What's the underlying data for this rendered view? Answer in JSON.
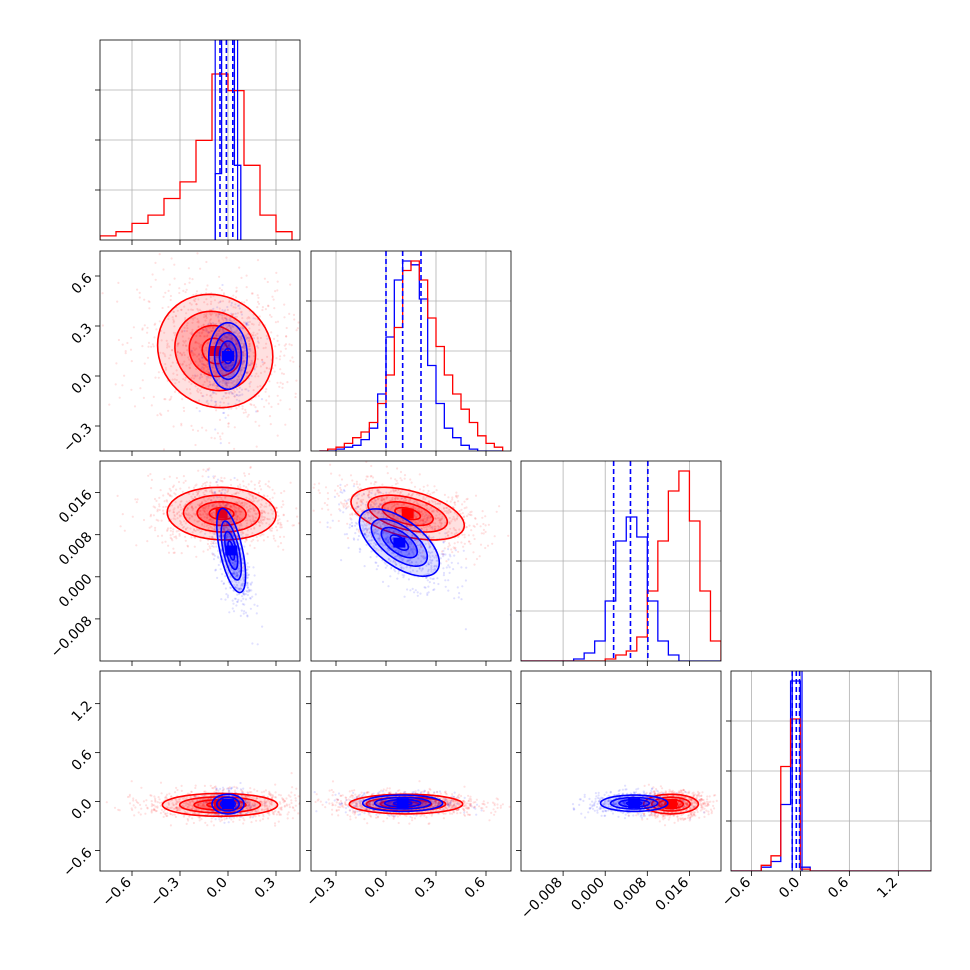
{
  "chart_data": {
    "type": "corner",
    "title": "",
    "grid": true,
    "legend": "none",
    "series": [
      {
        "name": "",
        "color": "#0000ff"
      },
      {
        "name": "",
        "color": "#ff0000"
      }
    ],
    "quantile_line_color": "#0000ff",
    "parameters": [
      {
        "label": "",
        "range": [
          -0.8,
          0.45
        ],
        "ticks": [
          -0.6,
          -0.3,
          0.0,
          0.3
        ],
        "tick_labels": [
          "−0.6",
          "−0.3",
          "0.0",
          "0.3"
        ],
        "quantiles": [
          -0.05,
          -0.01,
          0.03
        ],
        "hist_edges": [
          -0.8,
          -0.7,
          -0.6,
          -0.5,
          -0.4,
          -0.3,
          -0.2,
          -0.1,
          0.0,
          0.1,
          0.2,
          0.3,
          0.4
        ],
        "hist_blue": [
          0,
          0,
          0,
          0,
          0,
          0,
          0,
          0.03,
          0.04,
          0.0,
          0.0,
          0.0
        ],
        "hist_red": [
          0.05,
          0.1,
          0.2,
          0.3,
          0.5,
          0.7,
          1.2,
          2.0,
          1.8,
          0.9,
          0.3,
          0.1
        ],
        "blue_peak_bins": [
          -0.06,
          -0.02,
          0.02,
          0.06
        ],
        "blue_peak_values": [
          0.8,
          4.0,
          3.5,
          0.9
        ]
      },
      {
        "label": "",
        "range": [
          -0.45,
          0.75
        ],
        "ticks": [
          -0.3,
          0.0,
          0.3,
          0.6
        ],
        "tick_labels": [
          "−0.3",
          "0.0",
          "0.3",
          "0.6"
        ],
        "quantiles": [
          0.0,
          0.1,
          0.21
        ],
        "hist_edges": [
          -0.4,
          -0.35,
          -0.3,
          -0.25,
          -0.2,
          -0.15,
          -0.1,
          -0.05,
          0.0,
          0.05,
          0.1,
          0.15,
          0.2,
          0.25,
          0.3,
          0.35,
          0.4,
          0.45,
          0.5,
          0.55,
          0.6,
          0.65,
          0.7
        ],
        "hist_blue": [
          0.0,
          0.0,
          0.01,
          0.02,
          0.03,
          0.06,
          0.12,
          0.3,
          0.6,
          0.9,
          1.0,
          0.98,
          0.8,
          0.45,
          0.25,
          0.12,
          0.07,
          0.03,
          0.01,
          0.0,
          0.0,
          0.0
        ],
        "hist_red": [
          0.0,
          0.01,
          0.02,
          0.04,
          0.07,
          0.1,
          0.15,
          0.25,
          0.4,
          0.65,
          0.95,
          1.0,
          0.9,
          0.7,
          0.55,
          0.4,
          0.3,
          0.22,
          0.15,
          0.08,
          0.04,
          0.02
        ]
      },
      {
        "label": "",
        "range": [
          -0.016,
          0.022
        ],
        "ticks": [
          -0.008,
          0.0,
          0.008,
          0.016
        ],
        "tick_labels": [
          "−0.008",
          "0.000",
          "0.008",
          "0.016"
        ],
        "quantiles": [
          0.0016,
          0.0048,
          0.0081
        ],
        "hist_edges": [
          -0.016,
          -0.014,
          -0.012,
          -0.01,
          -0.008,
          -0.006,
          -0.004,
          -0.002,
          0.0,
          0.002,
          0.004,
          0.006,
          0.008,
          0.01,
          0.012,
          0.014,
          0.016,
          0.018,
          0.02,
          0.022
        ],
        "hist_blue": [
          0.0,
          0.0,
          0.0,
          0.0,
          0.0,
          0.01,
          0.04,
          0.1,
          0.3,
          0.6,
          0.72,
          0.62,
          0.3,
          0.1,
          0.03,
          0.0,
          0.0,
          0.0,
          0.0
        ],
        "hist_red": [
          0.0,
          0.0,
          0.0,
          0.0,
          0.0,
          0.0,
          0.0,
          0.0,
          0.01,
          0.03,
          0.05,
          0.12,
          0.35,
          0.6,
          0.85,
          0.95,
          0.7,
          0.35,
          0.1
        ]
      },
      {
        "label": "",
        "range": [
          -0.85,
          1.6
        ],
        "ticks": [
          -0.6,
          0.0,
          0.6,
          1.2
        ],
        "tick_labels": [
          "−0.6",
          "0.0",
          "0.6",
          "1.2"
        ],
        "quantiles": [
          -0.1,
          -0.05,
          -0.01
        ],
        "hist_edges": [
          -0.85,
          -0.73,
          -0.6,
          -0.48,
          -0.36,
          -0.24,
          -0.12,
          0.0,
          0.12,
          0.24,
          0.36,
          0.48,
          0.6,
          0.72,
          0.84,
          0.96,
          1.08,
          1.2,
          1.32,
          1.44,
          1.6
        ],
        "hist_blue": [
          0.0,
          0.0,
          0.0,
          0.02,
          0.05,
          0.35,
          1.0,
          0.02,
          0.0,
          0.0,
          0.0,
          0.0,
          0.0,
          0.0,
          0.0,
          0.0,
          0.0,
          0.0,
          0.0,
          0.0
        ],
        "hist_red": [
          0.0,
          0.0,
          0.0,
          0.03,
          0.08,
          0.55,
          0.8,
          0.01,
          0.0,
          0.0,
          0.0,
          0.0,
          0.0,
          0.0,
          0.0,
          0.0,
          0.0,
          0.0,
          0.0,
          0.0
        ]
      }
    ],
    "pairs": [
      {
        "x": 0,
        "y": 1,
        "blue_center": [
          0.0,
          0.12
        ],
        "blue_spread": [
          0.06,
          0.1
        ],
        "blue_rho": 0.0,
        "red_center": [
          -0.08,
          0.15
        ],
        "red_spread": [
          0.18,
          0.17
        ],
        "red_rho": -0.1
      },
      {
        "x": 0,
        "y": 2,
        "blue_center": [
          0.02,
          0.005
        ],
        "blue_spread": [
          0.045,
          0.004
        ],
        "blue_rho": -0.6,
        "red_center": [
          -0.04,
          0.012
        ],
        "red_spread": [
          0.17,
          0.0025
        ],
        "red_rho": -0.05
      },
      {
        "x": 1,
        "y": 2,
        "blue_center": [
          0.08,
          0.0065
        ],
        "blue_spread": [
          0.12,
          0.0032
        ],
        "blue_rho": -0.6,
        "red_center": [
          0.13,
          0.012
        ],
        "red_spread": [
          0.17,
          0.0025
        ],
        "red_rho": -0.45
      },
      {
        "x": 0,
        "y": 3,
        "blue_center": [
          0.0,
          -0.03
        ],
        "blue_spread": [
          0.05,
          0.06
        ],
        "blue_rho": 0.0,
        "red_center": [
          -0.05,
          -0.04
        ],
        "red_spread": [
          0.18,
          0.07
        ],
        "red_rho": 0.0
      },
      {
        "x": 1,
        "y": 3,
        "blue_center": [
          0.1,
          -0.02
        ],
        "blue_spread": [
          0.12,
          0.05
        ],
        "blue_rho": 0.0,
        "red_center": [
          0.12,
          -0.03
        ],
        "red_spread": [
          0.17,
          0.06
        ],
        "red_rho": 0.0
      },
      {
        "x": 2,
        "y": 3,
        "blue_center": [
          0.0055,
          -0.02
        ],
        "blue_spread": [
          0.0032,
          0.05
        ],
        "blue_rho": 0.0,
        "red_center": [
          0.0125,
          -0.03
        ],
        "red_spread": [
          0.0026,
          0.06
        ],
        "red_rho": 0.0
      }
    ]
  }
}
